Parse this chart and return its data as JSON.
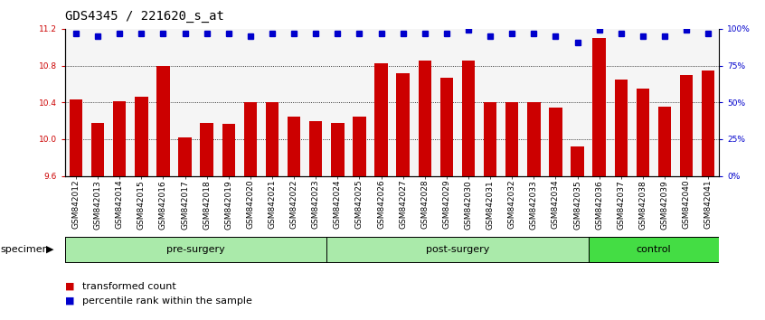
{
  "title": "GDS4345 / 221620_s_at",
  "samples": [
    "GSM842012",
    "GSM842013",
    "GSM842014",
    "GSM842015",
    "GSM842016",
    "GSM842017",
    "GSM842018",
    "GSM842019",
    "GSM842020",
    "GSM842021",
    "GSM842022",
    "GSM842023",
    "GSM842024",
    "GSM842025",
    "GSM842026",
    "GSM842027",
    "GSM842028",
    "GSM842029",
    "GSM842030",
    "GSM842031",
    "GSM842032",
    "GSM842033",
    "GSM842034",
    "GSM842035",
    "GSM842036",
    "GSM842037",
    "GSM842038",
    "GSM842039",
    "GSM842040",
    "GSM842041"
  ],
  "bar_values": [
    10.43,
    10.18,
    10.41,
    10.46,
    10.8,
    10.02,
    10.18,
    10.17,
    10.4,
    10.4,
    10.25,
    10.2,
    10.18,
    10.25,
    10.83,
    10.72,
    10.85,
    10.67,
    10.85,
    10.4,
    10.4,
    10.4,
    10.34,
    9.92,
    11.1,
    10.65,
    10.55,
    10.35,
    10.7,
    10.75
  ],
  "percentile_values": [
    97,
    95,
    97,
    97,
    97,
    97,
    97,
    97,
    95,
    97,
    97,
    97,
    97,
    97,
    97,
    97,
    97,
    97,
    99,
    95,
    97,
    97,
    95,
    91,
    99,
    97,
    95,
    95,
    99,
    97
  ],
  "bar_color": "#cc0000",
  "percentile_color": "#0000cc",
  "ylim_left": [
    9.6,
    11.2
  ],
  "ylim_right": [
    0,
    100
  ],
  "yticks_left": [
    9.6,
    10.0,
    10.4,
    10.8,
    11.2
  ],
  "yticks_right": [
    0,
    25,
    50,
    75,
    100
  ],
  "groups": [
    {
      "label": "pre-surgery",
      "start": 0,
      "end": 12
    },
    {
      "label": "post-surgery",
      "start": 12,
      "end": 24
    },
    {
      "label": "control",
      "start": 24,
      "end": 30
    }
  ],
  "group_colors": [
    "#aaeaaa",
    "#aaeaaa",
    "#44dd44"
  ],
  "legend_bar_label": "transformed count",
  "legend_pct_label": "percentile rank within the sample",
  "specimen_label": "specimen",
  "bg_color": "#ffffff",
  "bar_color_legend": "#cc0000",
  "pct_color_legend": "#0000cc",
  "tick_label_color": "#cc0000",
  "right_tick_color": "#0000cc",
  "bar_bottom": 9.6,
  "title_fontsize": 10,
  "tick_fontsize": 6.5,
  "group_fontsize": 8,
  "legend_fontsize": 8,
  "specimen_fontsize": 8
}
